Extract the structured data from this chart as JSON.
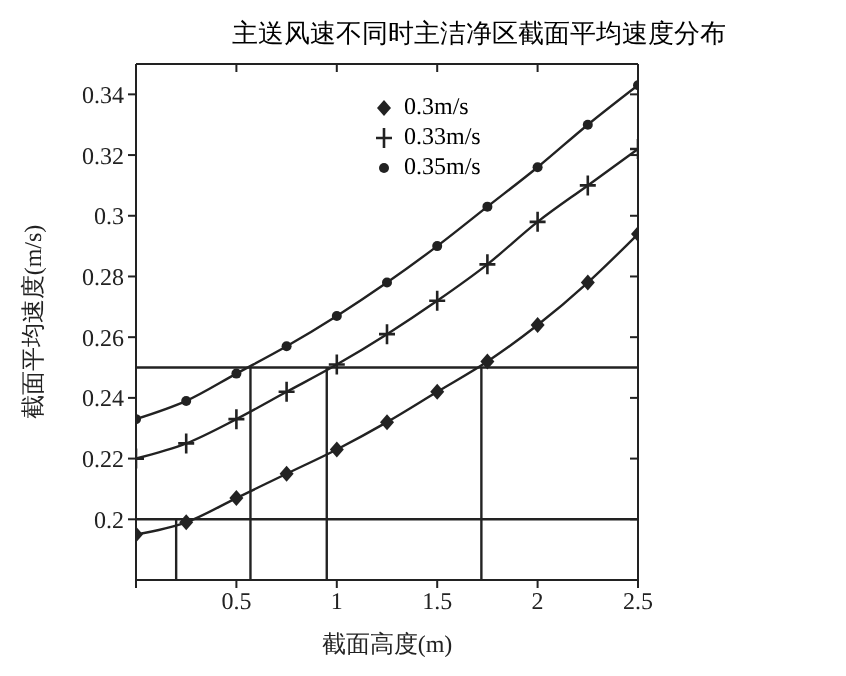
{
  "chart_data": {
    "type": "line",
    "title": "主送风速不同时主洁净区截面平均速度分布",
    "xlabel": "截面高度(m)",
    "ylabel": "截面平均速度(m/s)",
    "x": [
      0,
      0.25,
      0.5,
      0.75,
      1.0,
      1.25,
      1.5,
      1.75,
      2.0,
      2.25,
      2.5
    ],
    "series": [
      {
        "name": "0.3m/s",
        "color": "#222222",
        "marker": "diamond",
        "values": [
          0.195,
          0.199,
          0.207,
          0.215,
          0.223,
          0.232,
          0.242,
          0.252,
          0.264,
          0.278,
          0.294
        ]
      },
      {
        "name": "0.33m/s",
        "color": "#222222",
        "marker": "cross",
        "values": [
          0.22,
          0.225,
          0.233,
          0.242,
          0.251,
          0.261,
          0.272,
          0.284,
          0.298,
          0.31,
          0.322
        ]
      },
      {
        "name": "0.35m/s",
        "color": "#222222",
        "marker": "circle",
        "values": [
          0.233,
          0.239,
          0.248,
          0.257,
          0.267,
          0.278,
          0.29,
          0.303,
          0.316,
          0.33,
          0.343
        ]
      }
    ],
    "xlim": [
      0,
      2.5
    ],
    "xticks": [
      {
        "value": 0,
        "label": null
      },
      0.5,
      1,
      1.5,
      2,
      2.5
    ],
    "ylim": [
      0.18,
      0.35
    ],
    "yticks": [
      0.2,
      0.22,
      0.24,
      0.26,
      0.28,
      0.3,
      0.32,
      0.34
    ],
    "ref_lines": [
      {
        "axis": "y",
        "value": 0.2,
        "color": "#222222"
      },
      {
        "axis": "y",
        "value": 0.25,
        "color": "#222222"
      },
      {
        "axis": "x",
        "value": 0.2,
        "color": "#222222"
      },
      {
        "axis": "x",
        "value": 0.57,
        "color": "#222222"
      },
      {
        "axis": "x",
        "value": 0.95,
        "color": "#222222"
      },
      {
        "axis": "x",
        "value": 1.72,
        "color": "#222222"
      }
    ],
    "legend": "top right",
    "grid": false
  }
}
